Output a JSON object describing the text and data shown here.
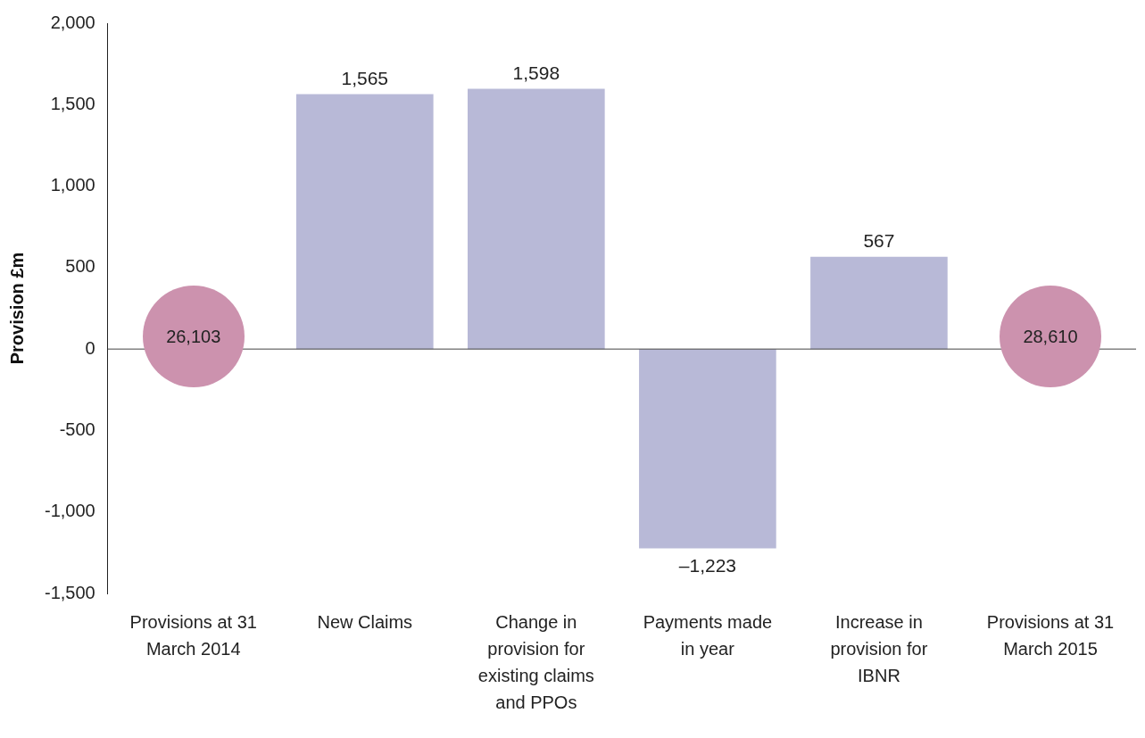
{
  "chart_data": {
    "type": "bar",
    "categories": [
      "Provisions at 31 March 2014",
      "New Claims",
      "Change in provision for existing claims and PPOs",
      "Payments made in year",
      "Increase in provision for IBNR",
      "Provisions at 31 March 2015"
    ],
    "values": [
      null,
      1565,
      1598,
      -1223,
      567,
      null
    ],
    "value_labels": [
      null,
      "1,565",
      "1,598",
      "–1,223",
      "567",
      null
    ],
    "color": "#b8b9d7",
    "ylabel": "Provision £m",
    "ylim": [
      -1500,
      2000
    ],
    "yticks": [
      {
        "value": -1500,
        "label": "-1,500"
      },
      {
        "value": -1000,
        "label": "-1,000"
      },
      -500,
      0,
      500,
      {
        "value": 1000,
        "label": "1,000"
      },
      {
        "value": 1500,
        "label": "1,500"
      },
      {
        "value": 2000,
        "label": "2,000"
      }
    ],
    "annotations": [
      "26,103",
      "28,610"
    ],
    "ref_lines": [
      {
        "axis": "y",
        "value": 0,
        "color": "#444444"
      }
    ],
    "grid": false,
    "legend": false
  }
}
